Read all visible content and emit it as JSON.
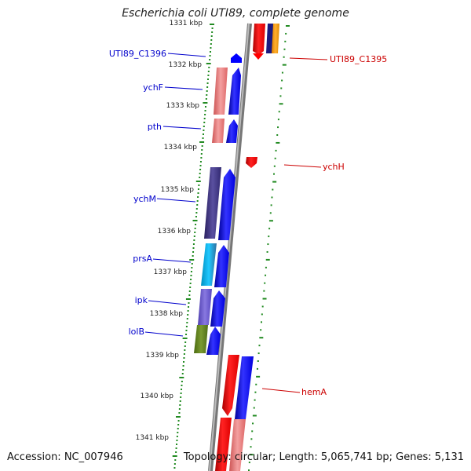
{
  "title": "Escherichia coli UTI89, complete genome",
  "footer": {
    "accession": "Accession: NC_007946",
    "topology": "Topology: circular; Length: 5,065,741 bp; Genes: 5,131"
  },
  "colors": {
    "backbone": "#8c8c8c",
    "tick": "#228b22",
    "left_label": "#0000cc",
    "right_label": "#cc0000",
    "arrow_blue": "#0000ff",
    "arrow_red": "#ff0000"
  },
  "ruler": [
    {
      "label": "1331 kbp"
    },
    {
      "label": "1332 kbp"
    },
    {
      "label": "1333 kbp"
    },
    {
      "label": "1334 kbp"
    },
    {
      "label": "1335 kbp"
    },
    {
      "label": "1336 kbp"
    },
    {
      "label": "1337 kbp"
    },
    {
      "label": "1338 kbp"
    },
    {
      "label": "1339 kbp"
    },
    {
      "label": "1340 kbp"
    },
    {
      "label": "1341 kbp"
    }
  ],
  "left_genes": [
    {
      "name": "UTI89_C1396"
    },
    {
      "name": "ychF"
    },
    {
      "name": "pth"
    },
    {
      "name": "ychM"
    },
    {
      "name": "prsA"
    },
    {
      "name": "ipk"
    },
    {
      "name": "lolB"
    }
  ],
  "right_genes": [
    {
      "name": "UTI89_C1395"
    },
    {
      "name": "ychH"
    },
    {
      "name": "hemA"
    }
  ]
}
